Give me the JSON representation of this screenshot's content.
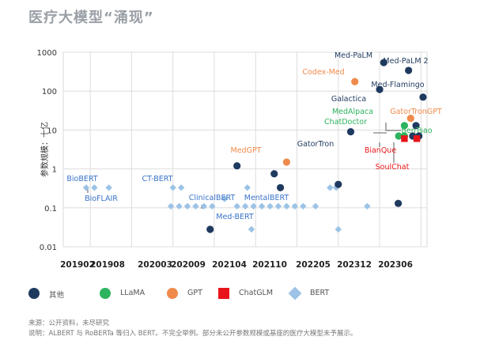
{
  "title": "医疗大模型“涌现”",
  "chart_data": {
    "type": "scatter",
    "xlabel": "",
    "ylabel": "参数规模：十亿",
    "x_ticks": [
      "201902",
      "201908",
      "202003",
      "202009",
      "202104",
      "202110",
      "202205",
      "202312",
      "202306"
    ],
    "y_scale": "log",
    "ylim": [
      0.01,
      1000
    ],
    "y_ticks": [
      "1000",
      "100",
      "10",
      "1",
      "0.1",
      "0.01"
    ],
    "grid": true,
    "legend_position": "bottom",
    "series": [
      {
        "name": "其他",
        "color": "#1f3a5f",
        "shape": "circle",
        "points": [
          {
            "x": 3.4,
            "y": 0.028
          },
          {
            "x": 4.05,
            "y": 1.2
          },
          {
            "x": 4.95,
            "y": 0.75
          },
          {
            "x": 5.1,
            "y": 0.33
          },
          {
            "x": 6.5,
            "y": 0.4
          },
          {
            "x": 6.8,
            "y": 9
          },
          {
            "x": 7.5,
            "y": 110
          },
          {
            "x": 7.6,
            "y": 540
          },
          {
            "x": 7.95,
            "y": 0.13
          },
          {
            "x": 8.2,
            "y": 340
          },
          {
            "x": 8.3,
            "y": 7
          },
          {
            "x": 8.38,
            "y": 13
          },
          {
            "x": 8.45,
            "y": 7
          },
          {
            "x": 8.55,
            "y": 70
          }
        ]
      },
      {
        "name": "LLaMA",
        "color": "#2db35d",
        "shape": "circle",
        "points": [
          {
            "x": 7.96,
            "y": 7
          },
          {
            "x": 8.1,
            "y": 13
          },
          {
            "x": 8.1,
            "y": 7
          }
        ]
      },
      {
        "name": "GPT",
        "color": "#f08a4b",
        "shape": "circle",
        "points": [
          {
            "x": 5.25,
            "y": 1.5
          },
          {
            "x": 6.9,
            "y": 175
          },
          {
            "x": 8.25,
            "y": 20
          }
        ]
      },
      {
        "name": "ChatGLM",
        "color": "#e8151b",
        "shape": "square",
        "points": [
          {
            "x": 8.1,
            "y": 6
          },
          {
            "x": 8.4,
            "y": 6
          }
        ]
      },
      {
        "name": "BERT",
        "color": "#9cc3e6",
        "shape": "diamond",
        "points": [
          {
            "x": 0.4,
            "y": 0.33
          },
          {
            "x": 0.6,
            "y": 0.33
          },
          {
            "x": 0.95,
            "y": 0.33
          },
          {
            "x": 2.5,
            "y": 0.33
          },
          {
            "x": 2.7,
            "y": 0.33
          },
          {
            "x": 2.45,
            "y": 0.11
          },
          {
            "x": 2.65,
            "y": 0.11
          },
          {
            "x": 2.85,
            "y": 0.11
          },
          {
            "x": 3.05,
            "y": 0.11
          },
          {
            "x": 3.25,
            "y": 0.11
          },
          {
            "x": 3.45,
            "y": 0.11
          },
          {
            "x": 3.75,
            "y": 0.17
          },
          {
            "x": 4.05,
            "y": 0.11
          },
          {
            "x": 4.25,
            "y": 0.11
          },
          {
            "x": 4.45,
            "y": 0.11
          },
          {
            "x": 4.65,
            "y": 0.11
          },
          {
            "x": 4.85,
            "y": 0.11
          },
          {
            "x": 5.05,
            "y": 0.11
          },
          {
            "x": 5.25,
            "y": 0.11
          },
          {
            "x": 5.45,
            "y": 0.11
          },
          {
            "x": 5.65,
            "y": 0.11
          },
          {
            "x": 4.3,
            "y": 0.33
          },
          {
            "x": 4.4,
            "y": 0.028
          },
          {
            "x": 5.95,
            "y": 0.11
          },
          {
            "x": 6.3,
            "y": 0.33
          },
          {
            "x": 6.45,
            "y": 0.33
          },
          {
            "x": 6.5,
            "y": 0.028
          },
          {
            "x": 7.2,
            "y": 0.11
          }
        ]
      }
    ],
    "annotations": [
      {
        "text": "BioBERT",
        "color": "#3a73c9"
      },
      {
        "text": "BioFLAIR",
        "color": "#3a73c9"
      },
      {
        "text": "CT-BERT",
        "color": "#3a73c9"
      },
      {
        "text": "ClinicalBERT",
        "color": "#3a73c9"
      },
      {
        "text": "Med-BERT",
        "color": "#3a73c9"
      },
      {
        "text": "MentalBERT",
        "color": "#3a73c9"
      },
      {
        "text": "MedGPT",
        "color": "#f08a4b"
      },
      {
        "text": "Codex-Med",
        "color": "#f08a4b"
      },
      {
        "text": "GatorTronGPT",
        "color": "#f08a4b"
      },
      {
        "text": "GatorTron",
        "color": "#1f3a5f"
      },
      {
        "text": "Galactica",
        "color": "#1f3a5f"
      },
      {
        "text": "Med-PaLM",
        "color": "#1f3a5f"
      },
      {
        "text": "Med-PaLM 2",
        "color": "#1f3a5f"
      },
      {
        "text": "Med-Flamingo",
        "color": "#1f3a5f"
      },
      {
        "text": "MedAlpaca",
        "color": "#2db35d"
      },
      {
        "text": "ChatDoctor",
        "color": "#2db35d"
      },
      {
        "text": "BenTsao",
        "color": "#2db35d"
      },
      {
        "text": "BianQue",
        "color": "#e8151b"
      },
      {
        "text": "SoulChat",
        "color": "#e8151b"
      }
    ]
  },
  "legend": [
    {
      "label": "其他",
      "color": "#1f3a5f",
      "shape": "circle"
    },
    {
      "label": "LLaMA",
      "color": "#2db35d",
      "shape": "circle"
    },
    {
      "label": "GPT",
      "color": "#f08a4b",
      "shape": "circle"
    },
    {
      "label": "ChatGLM",
      "color": "#e8151b",
      "shape": "square"
    },
    {
      "label": "BERT",
      "color": "#9cc3e6",
      "shape": "diamond"
    }
  ],
  "notes": {
    "source": "来源：公开资料，未尽研究",
    "explanation": "说明：ALBERT 与 RoBERTa 等归入 BERT。不完全举例。部分未公开参数规模或基座的医疗大模型未予展示。"
  }
}
